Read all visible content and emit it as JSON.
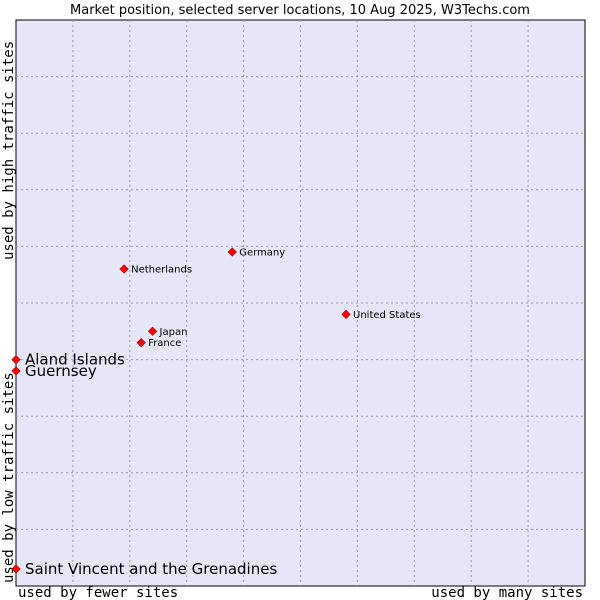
{
  "chart_data": {
    "type": "scatter",
    "title": "Market position, selected server locations, 10 Aug 2025, W3Techs.com",
    "xlabel_low": "used by fewer sites",
    "xlabel_high": "used by many sites",
    "ylabel_low": "used by low traffic sites",
    "ylabel_high": "used by high traffic sites",
    "xlim": [
      0,
      10
    ],
    "ylim": [
      0,
      10
    ],
    "grid": true,
    "points": [
      {
        "name": "Germany",
        "x": 3.8,
        "y": 5.9,
        "label_size": "small"
      },
      {
        "name": "Netherlands",
        "x": 1.9,
        "y": 5.6,
        "label_size": "small"
      },
      {
        "name": "United States",
        "x": 5.8,
        "y": 4.8,
        "label_size": "small"
      },
      {
        "name": "Japan",
        "x": 2.4,
        "y": 4.5,
        "label_size": "small"
      },
      {
        "name": "France",
        "x": 2.2,
        "y": 4.3,
        "label_size": "small"
      },
      {
        "name": "Aland Islands",
        "x": 0.0,
        "y": 4.0,
        "label_size": "large"
      },
      {
        "name": "Guernsey",
        "x": 0.0,
        "y": 3.8,
        "label_size": "large"
      },
      {
        "name": "Saint Vincent and the Grenadines",
        "x": 0.0,
        "y": 0.3,
        "label_size": "large"
      }
    ],
    "colors": {
      "plot_bg": "#e6e6f8",
      "grid": "#9999aa",
      "point": "#ff0000",
      "point_border": "#990000"
    }
  }
}
